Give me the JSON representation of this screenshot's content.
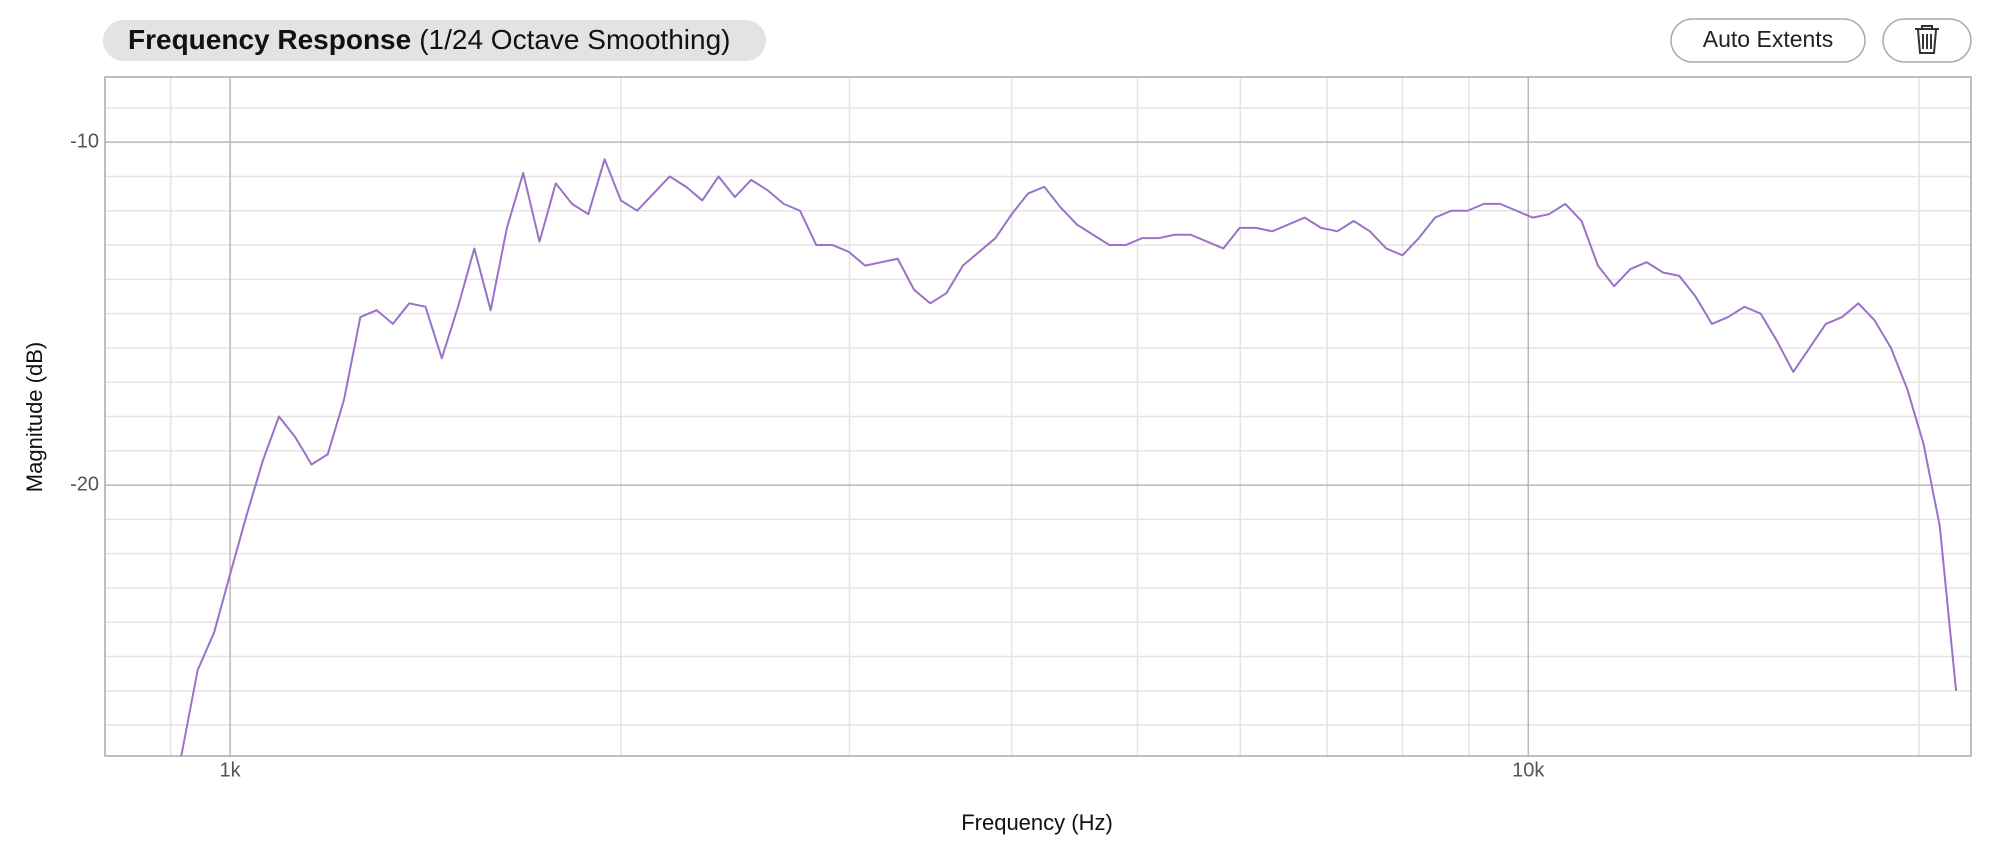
{
  "chart_data": {
    "type": "line",
    "title": "Frequency Response",
    "subtitle": "(1/24 Octave Smoothing)",
    "buttons": [
      "Auto Extents"
    ],
    "xlabel": "Frequency (Hz)",
    "ylabel": "Magnitude (dB)",
    "xscale": "log",
    "grid": true,
    "color": "#9a72c8",
    "xlim": [
      801,
      21930
    ],
    "ylim": [
      -27.9,
      -8.1
    ],
    "xticks": [
      {
        "value": 1000,
        "label": "1k"
      },
      {
        "value": 10000,
        "label": "10k"
      }
    ],
    "yticks": [
      -10,
      -20
    ],
    "x_minor_ticks": [
      900,
      2000,
      3000,
      4000,
      5000,
      6000,
      7000,
      8000,
      9000,
      20000
    ],
    "y_minor_ticks": [
      -9,
      -11,
      -12,
      -13,
      -14,
      -15,
      -16,
      -17,
      -18,
      -19,
      -21,
      -22,
      -23,
      -24,
      -25,
      -26,
      -27
    ],
    "x": [
      917,
      944,
      972,
      1000,
      1029.3,
      1059.5,
      1090.5,
      1122.5,
      1155.4,
      1189.2,
      1224.1,
      1259.9,
      1296.8,
      1334.8,
      1373.9,
      1414.2,
      1455.7,
      1498.3,
      1542.2,
      1587.4,
      1633.9,
      1681.8,
      1731.1,
      1781.8,
      1834,
      1887.7,
      1943.1,
      2000,
      2058.6,
      2118.9,
      2181,
      2244.9,
      2310.7,
      2378.4,
      2448.1,
      2519.8,
      2593.7,
      2669.6,
      2747.9,
      2828.4,
      2911.3,
      2996.6,
      3084.4,
      3174.8,
      3267.8,
      3363.6,
      3462.2,
      3563.6,
      3668,
      3775.5,
      3886.2,
      4000,
      4117.2,
      4237.8,
      4362,
      4489.8,
      4621.4,
      4756.8,
      4896.2,
      5039.7,
      5187.3,
      5339.4,
      5495.8,
      5656.9,
      5822.6,
      5993.2,
      6168.8,
      6349.6,
      6535.7,
      6727.2,
      6924.3,
      7127.2,
      7336,
      7551,
      7772.3,
      8000,
      8234.4,
      8475.6,
      8724,
      8979.6,
      9242.8,
      9513.7,
      9792.4,
      10079,
      10375,
      10679,
      10992,
      11314,
      11645,
      11986,
      12338,
      12699,
      13071,
      13454,
      13849,
      14254,
      14672,
      15102,
      15545,
      16000,
      16469,
      16951,
      17448,
      17959,
      18486,
      19027,
      19585,
      20159,
      20749,
      21357
    ],
    "values": [
      -27.9,
      -25.4,
      -24.3,
      -22.6,
      -20.9,
      -19.3,
      -18.0,
      -18.6,
      -19.4,
      -19.1,
      -17.5,
      -15.1,
      -14.9,
      -15.3,
      -14.7,
      -14.8,
      -16.3,
      -14.8,
      -13.1,
      -14.9,
      -12.5,
      -10.9,
      -12.9,
      -11.2,
      -11.8,
      -12.1,
      -10.5,
      -11.7,
      -12.0,
      -11.5,
      -11.0,
      -11.3,
      -11.7,
      -11.0,
      -11.6,
      -11.1,
      -11.4,
      -11.8,
      -12.0,
      -13.0,
      -13.0,
      -13.2,
      -13.6,
      -13.5,
      -13.4,
      -14.3,
      -14.7,
      -14.4,
      -13.6,
      -13.2,
      -12.8,
      -12.1,
      -11.5,
      -11.3,
      -11.9,
      -12.4,
      -12.7,
      -13.0,
      -13.0,
      -12.8,
      -12.8,
      -12.7,
      -12.7,
      -12.9,
      -13.1,
      -12.5,
      -12.5,
      -12.6,
      -12.4,
      -12.2,
      -12.5,
      -12.6,
      -12.3,
      -12.6,
      -13.1,
      -13.3,
      -12.8,
      -12.2,
      -12.0,
      -12.0,
      -11.8,
      -11.8,
      -12.0,
      -12.2,
      -12.1,
      -11.8,
      -12.3,
      -13.6,
      -14.2,
      -13.7,
      -13.5,
      -13.8,
      -13.9,
      -14.5,
      -15.3,
      -15.1,
      -14.8,
      -15.0,
      -15.8,
      -16.7,
      -16.0,
      -15.3,
      -15.1,
      -14.7,
      -15.2,
      -16.0,
      -17.2,
      -18.8,
      -21.2,
      -26.0
    ]
  }
}
